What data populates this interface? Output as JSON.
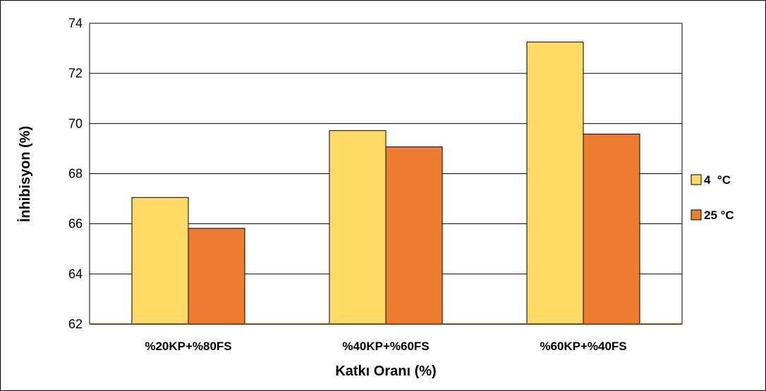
{
  "chart_data": {
    "type": "bar",
    "title": "",
    "xlabel": "Katkı Oranı (%)",
    "ylabel": "İnhibisyon (%)",
    "ylim": [
      62,
      74
    ],
    "yticks": [
      "62",
      "64",
      "66",
      "68",
      "70",
      "72",
      "74"
    ],
    "grid": true,
    "legend_position": "right",
    "categories": [
      "%20KP+%80FS",
      "%40KP+%60FS",
      "%60KP+%40FS"
    ],
    "series": [
      {
        "name": "4  °C",
        "color": "#FFD966",
        "values": [
          67.05,
          69.72,
          73.25
        ]
      },
      {
        "name": "25 °C",
        "color": "#ED7D31",
        "values": [
          65.82,
          69.07,
          69.58
        ]
      }
    ]
  }
}
